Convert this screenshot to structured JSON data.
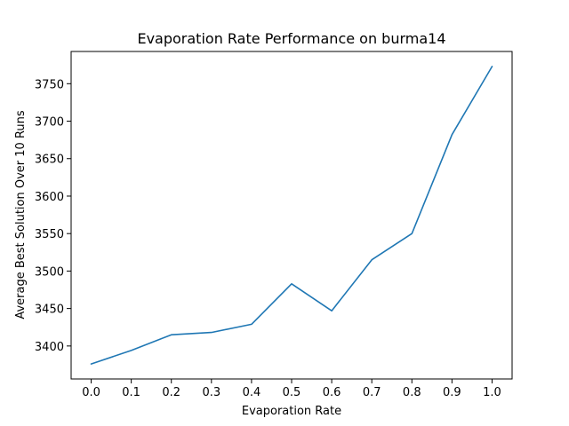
{
  "chart_data": {
    "type": "line",
    "title": "Evaporation Rate Performance on burma14",
    "xlabel": "Evaporation Rate",
    "ylabel": "Average Best Solution Over 10 Runs",
    "x": [
      0.0,
      0.1,
      0.2,
      0.3,
      0.4,
      0.5,
      0.6,
      0.7,
      0.8,
      0.9,
      1.0
    ],
    "x_tick_labels": [
      "0.0",
      "0.1",
      "0.2",
      "0.3",
      "0.4",
      "0.5",
      "0.6",
      "0.7",
      "0.8",
      "0.9",
      "1.0"
    ],
    "y_ticks": [
      3400,
      3450,
      3500,
      3550,
      3600,
      3650,
      3700,
      3750
    ],
    "series": [
      {
        "values": [
          3376,
          3394,
          3415,
          3418,
          3429,
          3483,
          3447,
          3515,
          3550,
          3682,
          3773
        ],
        "color": "#1f77b4"
      }
    ],
    "xlim": [
      -0.05,
      1.05
    ],
    "ylim": [
      3356,
      3793
    ],
    "grid": false,
    "legend": "none"
  }
}
